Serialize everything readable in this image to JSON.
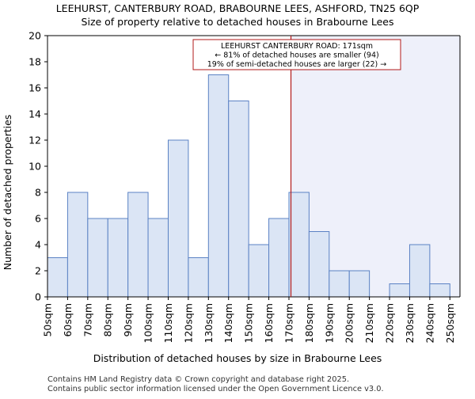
{
  "chart_data": {
    "type": "bar",
    "title": "LEEHURST, CANTERBURY ROAD, BRABOURNE LEES, ASHFORD, TN25 6QP",
    "subtitle": "Size of property relative to detached houses in Brabourne Lees",
    "xlabel": "Distribution of detached houses by size in Brabourne Lees",
    "ylabel": "Number of detached properties",
    "ylim": [
      0,
      20
    ],
    "yticks": [
      0,
      2,
      4,
      6,
      8,
      10,
      12,
      14,
      16,
      18,
      20
    ],
    "xlim": [
      50,
      255
    ],
    "bin_edges": [
      50,
      60,
      70,
      80,
      90,
      100,
      110,
      120,
      130,
      140,
      150,
      160,
      170,
      180,
      190,
      200,
      210,
      220,
      230,
      240,
      250
    ],
    "xtick_labels": [
      "50sqm",
      "60sqm",
      "70sqm",
      "80sqm",
      "90sqm",
      "100sqm",
      "110sqm",
      "120sqm",
      "130sqm",
      "140sqm",
      "150sqm",
      "160sqm",
      "170sqm",
      "180sqm",
      "190sqm",
      "200sqm",
      "210sqm",
      "220sqm",
      "230sqm",
      "240sqm",
      "250sqm"
    ],
    "values": [
      3,
      8,
      6,
      6,
      8,
      6,
      12,
      3,
      17,
      15,
      4,
      6,
      8,
      5,
      2,
      2,
      0,
      1,
      4,
      1
    ],
    "bar_color": "#dbe5f5",
    "bar_edge_color": "#5b82c4",
    "marker": {
      "x": 171,
      "color": "#b11a1a"
    },
    "highlight_region": {
      "from": 171,
      "to": 255,
      "color": "#eef0fa"
    },
    "annotation": {
      "lines": [
        "LEEHURST CANTERBURY ROAD: 171sqm",
        "← 81% of detached houses are smaller (94)",
        "19% of semi-detached houses are larger (22) →"
      ]
    },
    "grid": false
  },
  "footer": [
    "Contains HM Land Registry data © Crown copyright and database right 2025.",
    "Contains public sector information licensed under the Open Government Licence v3.0."
  ]
}
